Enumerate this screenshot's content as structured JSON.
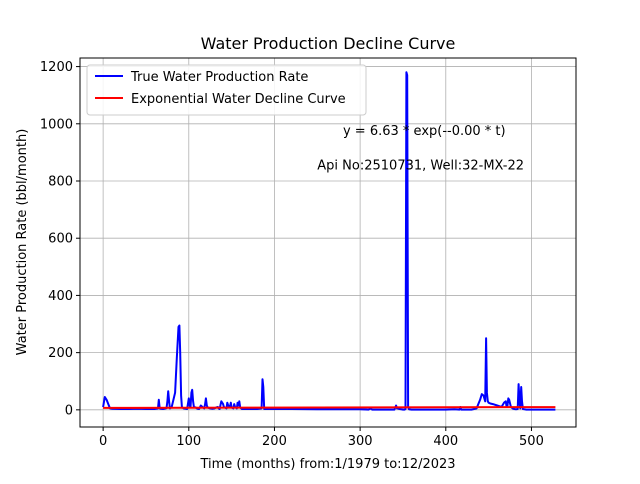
{
  "chart_data": {
    "type": "line",
    "title": "Water Production Decline Curve",
    "xlabel": "Time (months) from:1/1979 to:12/2023",
    "ylabel": "Water Production Rate (bbl/month)",
    "xlim": [
      -27,
      552
    ],
    "ylim": [
      -60,
      1230
    ],
    "xticks": [
      0,
      100,
      200,
      300,
      400,
      500
    ],
    "yticks": [
      0,
      200,
      400,
      600,
      800,
      1000,
      1200
    ],
    "grid": true,
    "legend_position": "top-left",
    "annotations": [
      {
        "text": "y = 6.63 * exp(--0.00 * t)",
        "x": 280,
        "y": 960
      },
      {
        "text": "Api No:2510731, Well:32-MX-22",
        "x": 250,
        "y": 840
      }
    ],
    "series": [
      {
        "name": "True Water Production Rate",
        "color": "#0000ff",
        "x": [
          0,
          2,
          4,
          6,
          8,
          10,
          20,
          30,
          40,
          50,
          60,
          64,
          65,
          66,
          67,
          70,
          74,
          75,
          76,
          77,
          78,
          80,
          84,
          86,
          88,
          89,
          90,
          91,
          92,
          94,
          96,
          98,
          100,
          101,
          102,
          103,
          104,
          105,
          106,
          108,
          110,
          112,
          114,
          116,
          118,
          119,
          120,
          121,
          122,
          125,
          128,
          130,
          132,
          134,
          135,
          136,
          138,
          140,
          141,
          142,
          144,
          145,
          146,
          148,
          149,
          150,
          152,
          153,
          154,
          156,
          157,
          158,
          159,
          160,
          162,
          170,
          180,
          185,
          186,
          187,
          188,
          190,
          200,
          220,
          250,
          280,
          300,
          310,
          312,
          314,
          320,
          330,
          340,
          342,
          343,
          344,
          346,
          348,
          350,
          352,
          353,
          354,
          355,
          356,
          357,
          360,
          380,
          400,
          410,
          416,
          417,
          418,
          420,
          430,
          436,
          438,
          440,
          442,
          444,
          446,
          447,
          448,
          449,
          450,
          452,
          455,
          460,
          465,
          468,
          470,
          471,
          472,
          473,
          474,
          476,
          478,
          480,
          482,
          484,
          485,
          486,
          487,
          488,
          489,
          490,
          492,
          494,
          500,
          510,
          528
        ],
        "y": [
          10,
          45,
          35,
          20,
          5,
          4,
          3,
          3,
          4,
          3,
          3,
          5,
          35,
          5,
          4,
          3,
          6,
          30,
          65,
          30,
          5,
          10,
          60,
          180,
          290,
          295,
          200,
          50,
          10,
          5,
          4,
          3,
          40,
          15,
          8,
          60,
          70,
          30,
          10,
          8,
          4,
          3,
          15,
          10,
          5,
          20,
          40,
          15,
          8,
          5,
          4,
          5,
          8,
          10,
          5,
          3,
          30,
          20,
          10,
          8,
          5,
          25,
          15,
          10,
          25,
          8,
          5,
          20,
          10,
          5,
          25,
          15,
          30,
          8,
          3,
          3,
          3,
          5,
          107,
          80,
          3,
          3,
          3,
          3,
          2,
          2,
          2,
          1,
          5,
          1,
          1,
          1,
          1,
          15,
          5,
          5,
          3,
          2,
          1,
          1,
          3,
          1180,
          1170,
          10,
          2,
          1,
          1,
          1,
          2,
          1,
          10,
          1,
          1,
          1,
          5,
          20,
          35,
          55,
          50,
          30,
          250,
          60,
          30,
          25,
          22,
          20,
          15,
          10,
          25,
          30,
          10,
          15,
          40,
          35,
          10,
          5,
          3,
          2,
          3,
          90,
          30,
          5,
          80,
          30,
          3,
          2,
          1,
          1,
          1,
          1
        ]
      },
      {
        "name": "Exponential Water Decline Curve",
        "color": "#ff0000",
        "x": [
          0,
          528
        ],
        "y": [
          6.63,
          9.5
        ]
      }
    ]
  }
}
